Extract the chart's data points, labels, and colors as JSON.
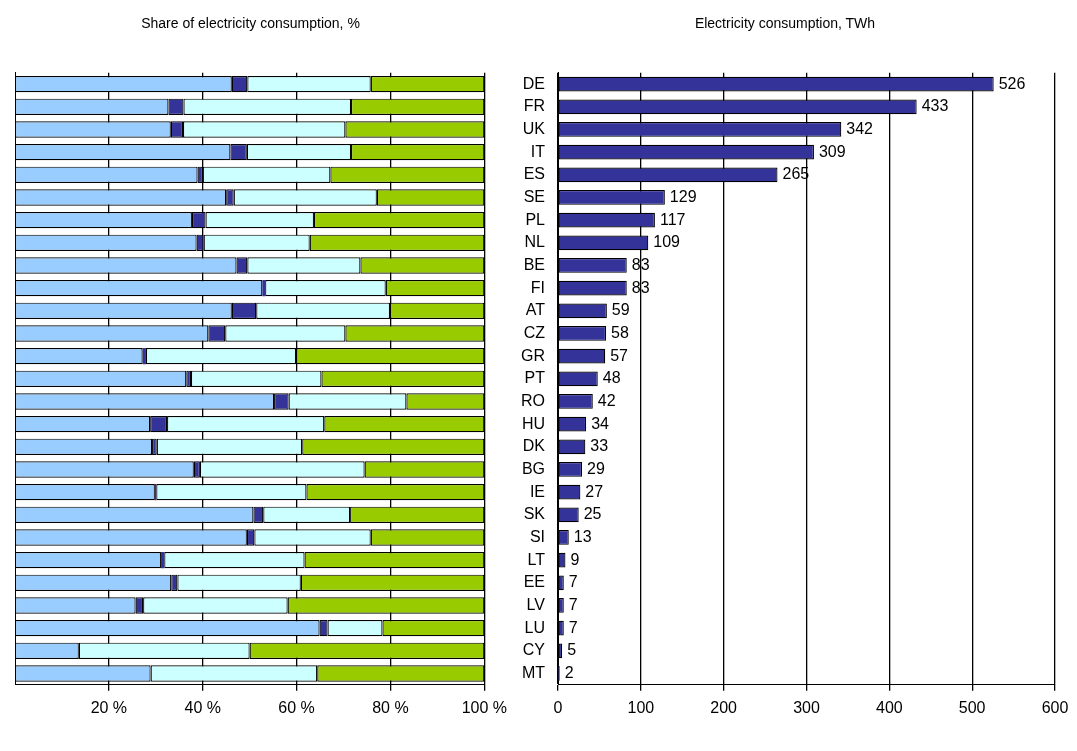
{
  "chart_data": [
    {
      "type": "bar",
      "title": "Share of electricity consumption, %",
      "orientation": "horizontal",
      "stacked": true,
      "tick_labels": "x",
      "grid": "x",
      "legend": false,
      "categories": [
        null,
        null,
        null,
        null,
        null,
        null,
        null,
        null,
        null,
        null,
        null,
        null,
        null,
        null,
        null,
        null,
        null,
        null,
        null,
        null,
        null,
        null,
        null,
        null,
        null,
        null,
        null
      ],
      "series": [
        {
          "color": "#99ccff",
          "values": [
            46.2,
            32.7,
            33.2,
            45.9,
            38.9,
            45.0,
            37.7,
            38.7,
            47.2,
            52.7,
            46.2,
            41.2,
            27.2,
            36.5,
            55.2,
            28.8,
            29.2,
            38.1,
            29.8,
            50.8,
            49.4,
            31.1,
            33.3,
            25.7,
            64.9,
            13.6,
            28.9
          ]
        },
        {
          "color": "#333399",
          "values": [
            3.3,
            3.2,
            2.6,
            3.5,
            1.1,
            1.6,
            2.9,
            1.5,
            2.3,
            0.6,
            5.2,
            3.6,
            0.7,
            1.0,
            3.1,
            3.6,
            1.0,
            1.3,
            0.3,
            2.1,
            1.6,
            0.7,
            1.3,
            1.6,
            1.7,
            0,
            0
          ]
        },
        {
          "color": "#ccffff",
          "values": [
            26.3,
            35.7,
            34.6,
            22.2,
            27.2,
            30.5,
            23.1,
            22.6,
            24.1,
            25.7,
            28.5,
            25.6,
            32.0,
            27.8,
            25.1,
            33.5,
            31.0,
            35.1,
            32.0,
            18.5,
            24.8,
            29.9,
            26.3,
            30.8,
            11.7,
            36.4,
            35.5
          ]
        },
        {
          "color": "#99cc00",
          "values": [
            24.2,
            28.4,
            29.6,
            28.4,
            32.8,
            22.9,
            36.3,
            37.2,
            26.4,
            21.0,
            20.1,
            29.6,
            40.1,
            34.7,
            16.6,
            34.1,
            38.8,
            25.5,
            37.9,
            28.6,
            24.2,
            38.3,
            39.1,
            41.9,
            21.7,
            50.0,
            35.6
          ]
        }
      ],
      "xlim": [
        0,
        100
      ],
      "xticks": [
        {
          "value": 20,
          "label": "20 %"
        },
        {
          "value": 40,
          "label": "40 %"
        },
        {
          "value": 60,
          "label": "60 %"
        },
        {
          "value": 80,
          "label": "80 %"
        },
        {
          "value": 100,
          "label": "100 %"
        }
      ]
    },
    {
      "type": "bar",
      "title": "Electricity consumption, TWh",
      "orientation": "horizontal",
      "grid": "x",
      "legend": false,
      "data_labels": true,
      "categories": [
        "DE",
        "FR",
        "UK",
        "IT",
        "ES",
        "SE",
        "PL",
        "NL",
        "BE",
        "FI",
        "AT",
        "CZ",
        "GR",
        "PT",
        "RO",
        "HU",
        "DK",
        "BG",
        "IE",
        "SK",
        "SI",
        "LT",
        "EE",
        "LV",
        "LU",
        "CY",
        "MT"
      ],
      "series": [
        {
          "color": "#333399",
          "values": [
            526,
            433,
            342,
            309,
            265,
            129,
            117,
            109,
            83,
            83,
            59,
            58,
            57,
            48,
            42,
            34,
            33,
            29,
            27,
            25,
            13,
            9,
            7,
            7,
            7,
            5,
            2
          ]
        }
      ],
      "xlim": [
        0,
        600
      ],
      "xticks": [
        0,
        100,
        200,
        300,
        400,
        500,
        600
      ]
    }
  ]
}
